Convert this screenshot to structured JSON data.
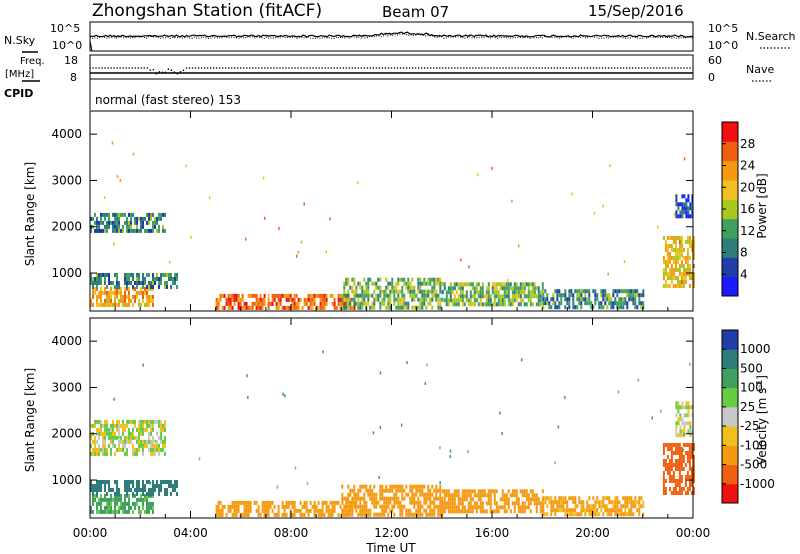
{
  "header": {
    "station": "Zhongshan Station (fitACF)",
    "beam": "Beam 07",
    "date": "15/Sep/2016"
  },
  "noise_panel": {
    "left_label": "N.Sky",
    "left_ticks": [
      "10^5",
      "10^0"
    ],
    "right_label": "N.Search",
    "right_ticks": [
      "10^5",
      "10^0"
    ]
  },
  "freq_panel": {
    "left_label_1": "Freq.",
    "left_label_2": "[MHz]",
    "left_ticks": [
      "18",
      "8"
    ],
    "right_label": "Nave",
    "right_ticks": [
      "60",
      "0"
    ],
    "cpid_label": "CPID",
    "cpid_text": "normal (fast stereo) 153"
  },
  "x_axis": {
    "ticks": [
      "00:00",
      "04:00",
      "08:00",
      "12:00",
      "16:00",
      "20:00",
      "00:00"
    ],
    "label": "Time UT"
  },
  "power_panel": {
    "ylabel": "Slant Range [km]",
    "yticks": [
      "4000",
      "3000",
      "2000",
      "1000"
    ],
    "colorbar_label": "Power [dB]",
    "colorbar_ticks": [
      "28",
      "24",
      "20",
      "16",
      "12",
      "8",
      "4"
    ],
    "colors": [
      "#1a1aff",
      "#1f3fa8",
      "#2e7d7a",
      "#3fa060",
      "#a8c820",
      "#f0c020",
      "#f59a10",
      "#f06010",
      "#f01010"
    ]
  },
  "velocity_panel": {
    "ylabel": "Slant Range [km]",
    "yticks": [
      "4000",
      "3000",
      "2000",
      "1000"
    ],
    "colorbar_label": "Velocity [m s",
    "colorbar_unit_sup": "-1",
    "colorbar_ticks": [
      "1000",
      "500",
      "100",
      "25",
      "-25",
      "-100",
      "-500",
      "-1000"
    ],
    "colors": [
      "#1f3fa8",
      "#2e7d7a",
      "#3fa060",
      "#66cc44",
      "#c8c8c8",
      "#f0c020",
      "#f59a10",
      "#f06010",
      "#f01010"
    ]
  },
  "chart_data": [
    {
      "type": "heatmap",
      "title": "Power",
      "xlabel": "Time UT",
      "ylabel": "Slant Range [km]",
      "x_range_hours": [
        0,
        24
      ],
      "ylim": [
        180,
        4500
      ],
      "zlabel": "Power [dB]",
      "z_range": [
        0,
        32
      ],
      "echo_regions": [
        {
          "t0": 0.0,
          "t1": 2.5,
          "r0": 300,
          "r1": 700,
          "power_db": 22
        },
        {
          "t0": 0.0,
          "t1": 3.5,
          "r0": 700,
          "r1": 1000,
          "power_db": 10
        },
        {
          "t0": 0.0,
          "t1": 3.0,
          "r0": 1900,
          "r1": 2300,
          "power_db": 10
        },
        {
          "t0": 5.0,
          "t1": 10.5,
          "r0": 250,
          "r1": 550,
          "power_db": 26
        },
        {
          "t0": 10.0,
          "t1": 14.0,
          "r0": 250,
          "r1": 900,
          "power_db": 14
        },
        {
          "t0": 14.0,
          "t1": 18.0,
          "r0": 300,
          "r1": 800,
          "power_db": 14
        },
        {
          "t0": 18.0,
          "t1": 22.0,
          "r0": 300,
          "r1": 650,
          "power_db": 10
        },
        {
          "t0": 22.8,
          "t1": 24.0,
          "r0": 700,
          "r1": 1800,
          "power_db": 20
        },
        {
          "t0": 23.3,
          "t1": 24.0,
          "r0": 2200,
          "r1": 2700,
          "power_db": 6
        }
      ]
    },
    {
      "type": "heatmap",
      "title": "Velocity",
      "xlabel": "Time UT",
      "ylabel": "Slant Range [km]",
      "x_range_hours": [
        0,
        24
      ],
      "ylim": [
        180,
        4500
      ],
      "zlabel": "Velocity [m s^-1]",
      "z_levels": [
        1000,
        500,
        100,
        25,
        -25,
        -100,
        -500,
        -1000
      ],
      "echo_regions": [
        {
          "t0": 0.0,
          "t1": 2.5,
          "r0": 300,
          "r1": 700,
          "velocity": 150
        },
        {
          "t0": 0.0,
          "t1": 3.5,
          "r0": 700,
          "r1": 1000,
          "velocity": 600
        },
        {
          "t0": 0.0,
          "t1": 3.0,
          "r0": 1600,
          "r1": 2300,
          "velocity": 0
        },
        {
          "t0": 5.0,
          "t1": 10.5,
          "r0": 250,
          "r1": 550,
          "velocity": -200
        },
        {
          "t0": 10.0,
          "t1": 14.0,
          "r0": 250,
          "r1": 900,
          "velocity": -200
        },
        {
          "t0": 14.0,
          "t1": 18.0,
          "r0": 300,
          "r1": 800,
          "velocity": -250
        },
        {
          "t0": 18.0,
          "t1": 22.0,
          "r0": 300,
          "r1": 650,
          "velocity": -150
        },
        {
          "t0": 22.8,
          "t1": 24.0,
          "r0": 700,
          "r1": 1800,
          "velocity": -600
        },
        {
          "t0": 23.3,
          "t1": 24.0,
          "r0": 2000,
          "r1": 2700,
          "velocity": 0
        }
      ]
    }
  ]
}
